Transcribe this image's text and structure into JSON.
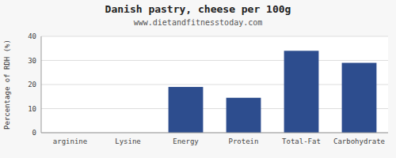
{
  "chart_data": {
    "type": "bar",
    "title": "Danish pastry, cheese per 100g",
    "subtitle": "www.dietandfitnesstoday.com",
    "categories": [
      "arginine",
      "Lysine",
      "Energy",
      "Protein",
      "Total-Fat",
      "Carbohydrate"
    ],
    "values": [
      0.0,
      0.0,
      19.0,
      14.5,
      34.0,
      29.0
    ],
    "color": "#2d4d8e",
    "ylabel": "Percentage of RDH (%)",
    "ylim": [
      0,
      40
    ],
    "yticks": [
      0,
      10,
      20,
      30,
      40
    ],
    "grid": true
  }
}
